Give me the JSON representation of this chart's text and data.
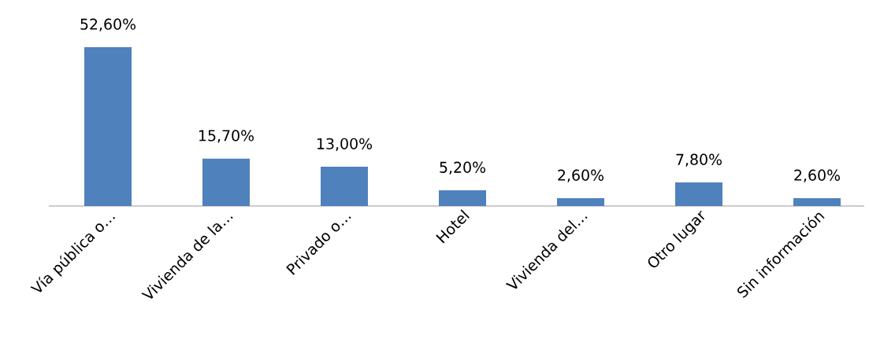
{
  "chart_data": {
    "type": "bar",
    "categories": [
      "Vía pública o…",
      "Vivienda de la…",
      "Privado o…",
      "Hotel",
      "Vivienda del…",
      "Otro lugar",
      "Sin información"
    ],
    "values": [
      52.6,
      15.7,
      13.0,
      5.2,
      2.6,
      7.8,
      2.6
    ],
    "value_labels": [
      "52,60%",
      "15,70%",
      "13,00%",
      "5,20%",
      "2,60%",
      "7,80%",
      "2,60%"
    ],
    "color": "#4f81bd"
  }
}
